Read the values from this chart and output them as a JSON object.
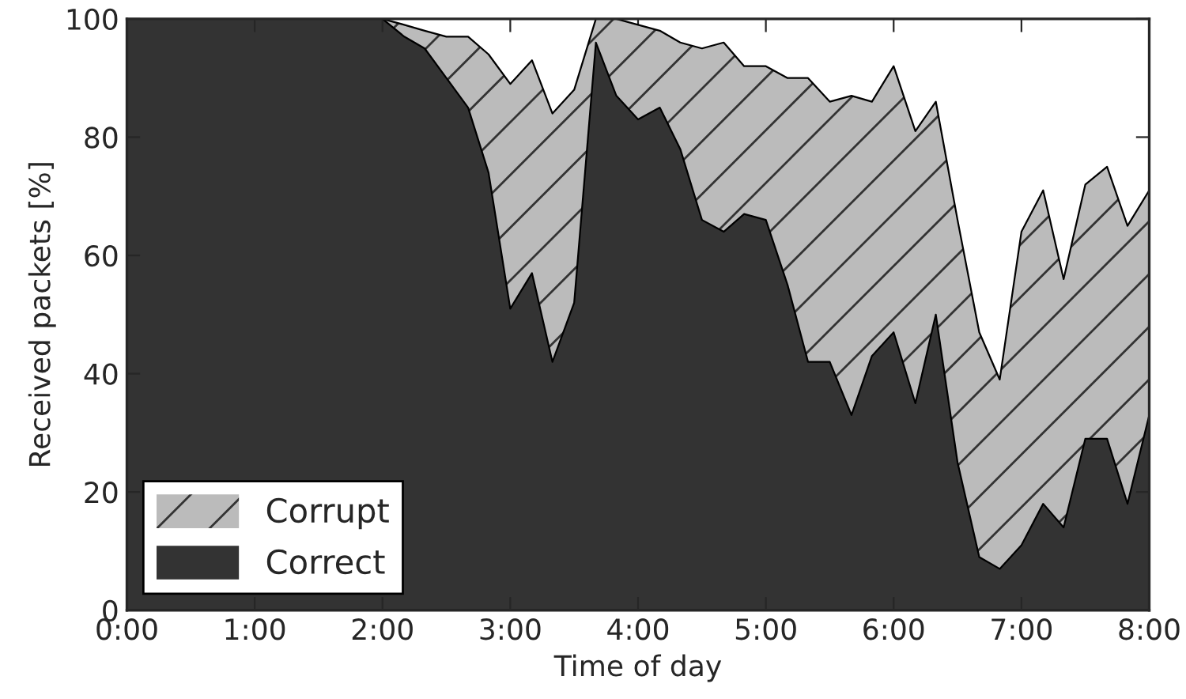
{
  "chart_data": {
    "type": "area",
    "stacked": true,
    "xlabel": "Time of day",
    "ylabel": "Received packets [%]",
    "x": [
      0,
      2,
      2.17,
      2.33,
      2.5,
      2.67,
      2.83,
      3,
      3.17,
      3.33,
      3.5,
      3.67,
      3.83,
      4,
      4.17,
      4.33,
      4.5,
      4.67,
      4.83,
      5,
      5.17,
      5.33,
      5.5,
      5.67,
      5.83,
      6,
      6.17,
      6.33,
      6.5,
      6.67,
      6.83,
      7,
      7.17,
      7.33,
      7.5,
      7.67,
      7.83,
      8
    ],
    "series": [
      {
        "name": "Correct",
        "color": "#333333",
        "values": [
          100,
          100,
          97,
          95,
          90,
          85,
          74,
          51,
          57,
          42,
          52,
          96,
          87,
          83,
          85,
          78,
          66,
          64,
          67,
          66,
          55,
          42,
          42,
          33,
          43,
          47,
          35,
          50,
          25,
          9,
          7,
          11,
          18,
          14,
          29,
          29,
          18,
          33
        ]
      },
      {
        "name": "Corrupt",
        "color": "#bbbbbb",
        "values": [
          0,
          0,
          2,
          3,
          7,
          12,
          20,
          38,
          36,
          42,
          36,
          4,
          13,
          16,
          13,
          18,
          29,
          32,
          25,
          26,
          35,
          48,
          44,
          54,
          43,
          45,
          46,
          36,
          41,
          38,
          32,
          53,
          53,
          42,
          43,
          46,
          47,
          38
        ]
      }
    ],
    "xlim": [
      0,
      8
    ],
    "ylim": [
      0,
      100
    ],
    "xticks": [
      {
        "value": 0,
        "label": "0:00"
      },
      {
        "value": 1,
        "label": "1:00"
      },
      {
        "value": 2,
        "label": "2:00"
      },
      {
        "value": 3,
        "label": "3:00"
      },
      {
        "value": 4,
        "label": "4:00"
      },
      {
        "value": 5,
        "label": "5:00"
      },
      {
        "value": 6,
        "label": "6:00"
      },
      {
        "value": 7,
        "label": "7:00"
      },
      {
        "value": 8,
        "label": "8:00"
      }
    ],
    "yticks": [
      0,
      20,
      40,
      60,
      80,
      100
    ],
    "legend": "bottom left",
    "grid": false
  }
}
